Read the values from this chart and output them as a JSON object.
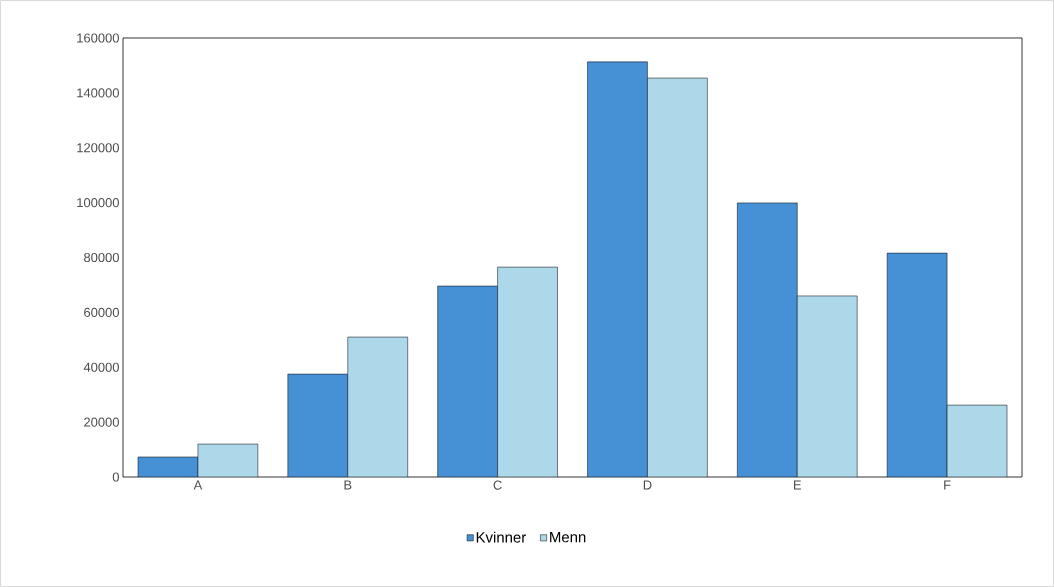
{
  "chart_data": {
    "type": "bar",
    "categories": [
      "A",
      "B",
      "C",
      "D",
      "E",
      "F"
    ],
    "series": [
      {
        "name": "Kvinner",
        "color": "#4690d5",
        "values": [
          7300,
          37500,
          69600,
          151300,
          99900,
          81600
        ]
      },
      {
        "name": "Menn",
        "color": "#add8e9",
        "values": [
          12000,
          51000,
          76500,
          145400,
          66000,
          26200
        ]
      }
    ],
    "ylim": [
      0,
      160000
    ],
    "yticks": [
      0,
      20000,
      40000,
      60000,
      80000,
      100000,
      120000,
      140000,
      160000
    ],
    "grid": false,
    "legend": "bottom"
  }
}
